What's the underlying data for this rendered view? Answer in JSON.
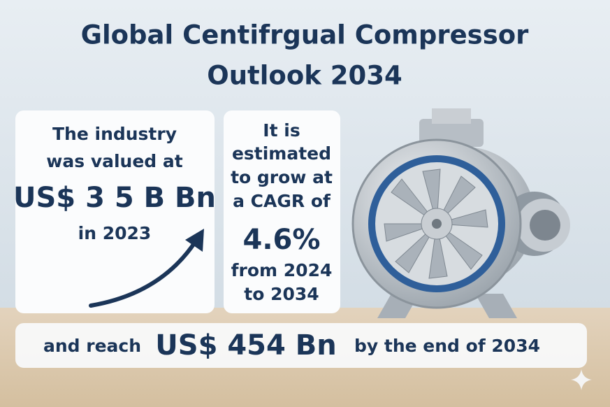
{
  "title": {
    "lines": [
      "Global Centifrgual Compressor",
      "Outlook 2034"
    ]
  },
  "cards": [
    {
      "lead": [
        "The industry",
        "was valued at"
      ],
      "highlight": "US$ 3 5 B Bn",
      "tail": [
        "in 2023"
      ]
    },
    {
      "lead": [
        "It is",
        "estimated",
        "to grow at",
        "a CAGR of"
      ],
      "highlight": "4.6%",
      "tail": [
        "from 2024",
        "to 2034"
      ]
    }
  ],
  "footer": {
    "lead": "and reach",
    "highlight": "US$ 454 Bn",
    "tail": "by the end of 2034"
  }
}
